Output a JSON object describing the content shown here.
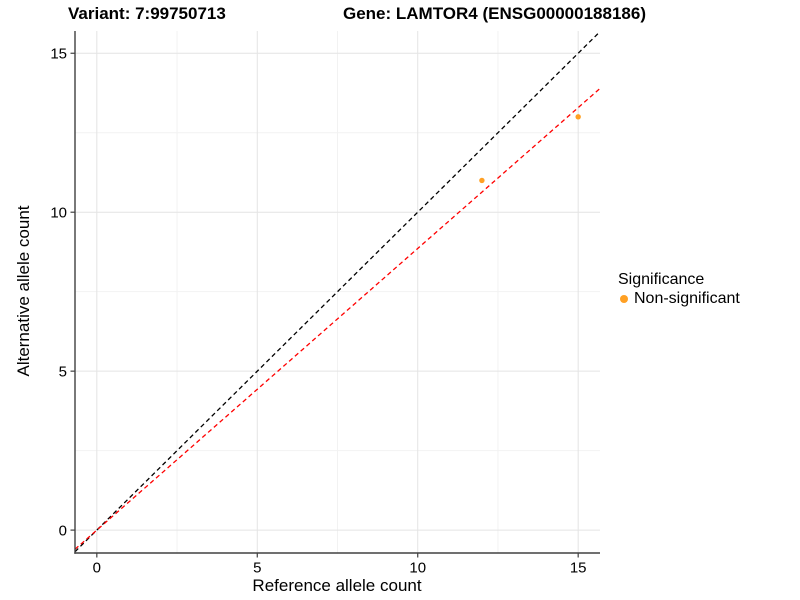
{
  "header": {
    "variant_title": "Variant: 7:99750713",
    "gene_title": "Gene: LAMTOR4 (ENSG00000188186)"
  },
  "chart_data": {
    "type": "scatter",
    "xlabel": "Reference allele count",
    "ylabel": "Alternative allele count",
    "xlim": [
      -0.68,
      15.68
    ],
    "ylim": [
      -0.72,
      15.7
    ],
    "x_ticks": [
      0,
      5,
      10,
      15
    ],
    "y_ticks": [
      0,
      5,
      10,
      15
    ],
    "x_minor_ticks": [
      2.5,
      7.5,
      12.5
    ],
    "y_minor_ticks": [
      2.5,
      7.5,
      12.5
    ],
    "grid": "on",
    "points": [
      {
        "x": 12,
        "y": 11
      },
      {
        "x": 15,
        "y": 13
      }
    ],
    "point_color": "#FFA024",
    "point_radius": 2.7,
    "lines": [
      {
        "name": "identity-line",
        "slope": 1,
        "intercept": 0,
        "color": "#000000",
        "dash": "4.5 3.2"
      },
      {
        "name": "ratio-line",
        "slope": 0.886,
        "intercept": 0,
        "color": "#FF0000",
        "dash": "4.5 3.2"
      }
    ],
    "legend": {
      "position": "right",
      "title": "Significance",
      "entries": [
        {
          "label": "Non-significant",
          "color": "#FFA024"
        }
      ]
    },
    "colors": {
      "axis_line": "#404040",
      "major_grid": "#E4E4E4",
      "minor_grid": "#F2F2F2",
      "background": "#FFFFFF"
    }
  }
}
